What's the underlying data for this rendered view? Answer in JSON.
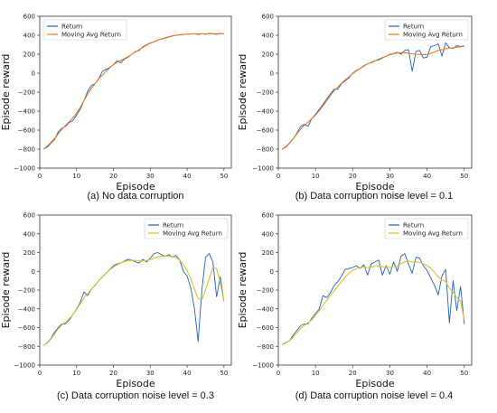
{
  "colors": {
    "return": "#1f5fbf",
    "avg_a": "#f07b1a",
    "avg_d": "#d9c02a"
  },
  "chart_data": [
    {
      "type": "line",
      "caption": "(a) No data corruption",
      "xlabel": "Episode",
      "ylabel": "Episode reward",
      "xlim": [
        0,
        52
      ],
      "ylim": [
        -1000,
        600
      ],
      "xticks": [
        "0",
        "10",
        "20",
        "30",
        "40",
        "50"
      ],
      "yticks": [
        "600",
        "400",
        "200",
        "0",
        "−200",
        "−400",
        "−600",
        "−800",
        "−1000"
      ],
      "legend": "top-left",
      "grid": false,
      "avg_color_key": "avg_a",
      "series": [
        {
          "name": "Return",
          "x": [
            1,
            2,
            3,
            4,
            5,
            6,
            7,
            8,
            9,
            10,
            11,
            12,
            13,
            14,
            15,
            16,
            17,
            18,
            19,
            20,
            21,
            22,
            23,
            24,
            25,
            26,
            27,
            28,
            29,
            30,
            31,
            32,
            33,
            34,
            35,
            36,
            37,
            38,
            39,
            40,
            41,
            42,
            43,
            44,
            45,
            46,
            47,
            48,
            49,
            50
          ],
          "values": [
            -800,
            -780,
            -740,
            -700,
            -620,
            -580,
            -560,
            -520,
            -500,
            -440,
            -380,
            -290,
            -190,
            -130,
            -110,
            -60,
            20,
            40,
            60,
            90,
            130,
            110,
            150,
            170,
            200,
            230,
            240,
            280,
            300,
            320,
            330,
            350,
            360,
            370,
            380,
            390,
            400,
            405,
            410,
            410,
            415,
            415,
            410,
            415,
            410,
            420,
            415,
            410,
            420,
            415
          ]
        },
        {
          "name": "Moving Avg Return",
          "x": [
            1,
            2,
            3,
            4,
            5,
            6,
            7,
            8,
            9,
            10,
            11,
            12,
            13,
            14,
            15,
            16,
            17,
            18,
            19,
            20,
            21,
            22,
            23,
            24,
            25,
            26,
            27,
            28,
            29,
            30,
            31,
            32,
            33,
            34,
            35,
            36,
            37,
            38,
            39,
            40,
            41,
            42,
            43,
            44,
            45,
            46,
            47,
            48,
            49,
            50
          ],
          "values": [
            -800,
            -770,
            -730,
            -690,
            -640,
            -590,
            -550,
            -510,
            -470,
            -420,
            -360,
            -290,
            -220,
            -160,
            -110,
            -60,
            -20,
            20,
            55,
            90,
            115,
            135,
            155,
            175,
            200,
            225,
            248,
            272,
            295,
            315,
            332,
            348,
            361,
            373,
            384,
            393,
            400,
            405,
            409,
            411,
            413,
            414,
            414,
            415,
            415,
            416,
            416,
            416,
            417,
            417
          ]
        }
      ]
    },
    {
      "type": "line",
      "caption": "(b) Data corruption noise level = 0.1",
      "xlabel": "Episode",
      "ylabel": "Episode reward",
      "xlim": [
        0,
        52
      ],
      "ylim": [
        -1000,
        600
      ],
      "xticks": [
        "0",
        "10",
        "20",
        "30",
        "40",
        "50"
      ],
      "yticks": [
        "600",
        "400",
        "200",
        "0",
        "−200",
        "−400",
        "−600",
        "−800",
        "−1000"
      ],
      "legend": "top-right",
      "grid": false,
      "avg_color_key": "avg_a",
      "series": [
        {
          "name": "Return",
          "x": [
            1,
            2,
            3,
            4,
            5,
            6,
            7,
            8,
            9,
            10,
            11,
            12,
            13,
            14,
            15,
            16,
            17,
            18,
            19,
            20,
            21,
            22,
            23,
            24,
            25,
            26,
            27,
            28,
            29,
            30,
            31,
            32,
            33,
            34,
            35,
            36,
            37,
            38,
            39,
            40,
            41,
            42,
            43,
            44,
            45,
            46,
            47,
            48,
            49,
            50
          ],
          "values": [
            -800,
            -780,
            -740,
            -690,
            -630,
            -560,
            -540,
            -560,
            -480,
            -430,
            -380,
            -330,
            -270,
            -220,
            -170,
            -170,
            -110,
            -80,
            -50,
            0,
            30,
            50,
            80,
            100,
            110,
            130,
            140,
            160,
            180,
            200,
            210,
            220,
            200,
            240,
            250,
            20,
            230,
            240,
            160,
            170,
            280,
            290,
            310,
            180,
            320,
            270,
            260,
            290,
            280,
            290
          ]
        },
        {
          "name": "Moving Avg Return",
          "x": [
            1,
            2,
            3,
            4,
            5,
            6,
            7,
            8,
            9,
            10,
            11,
            12,
            13,
            14,
            15,
            16,
            17,
            18,
            19,
            20,
            21,
            22,
            23,
            24,
            25,
            26,
            27,
            28,
            29,
            30,
            31,
            32,
            33,
            34,
            35,
            36,
            37,
            38,
            39,
            40,
            41,
            42,
            43,
            44,
            45,
            46,
            47,
            48,
            49,
            50
          ],
          "values": [
            -800,
            -775,
            -735,
            -690,
            -640,
            -590,
            -550,
            -515,
            -480,
            -440,
            -395,
            -345,
            -290,
            -235,
            -185,
            -145,
            -105,
            -70,
            -38,
            -5,
            25,
            50,
            75,
            97,
            115,
            132,
            148,
            164,
            180,
            194,
            206,
            213,
            215,
            215,
            213,
            205,
            200,
            198,
            196,
            198,
            210,
            225,
            240,
            248,
            258,
            264,
            268,
            274,
            278,
            284
          ]
        }
      ]
    },
    {
      "type": "line",
      "caption": "(c) Data corruption noise level = 0.3",
      "xlabel": "Episode",
      "ylabel": "Episode reward",
      "xlim": [
        0,
        52
      ],
      "ylim": [
        -1000,
        600
      ],
      "xticks": [
        "0",
        "10",
        "20",
        "30",
        "40",
        "50"
      ],
      "yticks": [
        "600",
        "400",
        "200",
        "0",
        "−200",
        "−400",
        "−600",
        "−800",
        "−1000"
      ],
      "legend": "top-right",
      "grid": false,
      "avg_color_key": "avg_d",
      "series": [
        {
          "name": "Return",
          "x": [
            1,
            2,
            3,
            4,
            5,
            6,
            7,
            8,
            9,
            10,
            11,
            12,
            13,
            14,
            15,
            16,
            17,
            18,
            19,
            20,
            21,
            22,
            23,
            24,
            25,
            26,
            27,
            28,
            29,
            30,
            31,
            32,
            33,
            34,
            35,
            36,
            37,
            38,
            39,
            40,
            41,
            42,
            43,
            44,
            45,
            46,
            47,
            48,
            49,
            50
          ],
          "values": [
            -790,
            -760,
            -720,
            -650,
            -600,
            -560,
            -560,
            -520,
            -460,
            -400,
            -330,
            -220,
            -260,
            -190,
            -150,
            -100,
            -60,
            -20,
            20,
            60,
            80,
            90,
            110,
            130,
            120,
            100,
            90,
            130,
            100,
            140,
            190,
            200,
            180,
            160,
            180,
            150,
            170,
            120,
            0,
            -50,
            -180,
            -400,
            -750,
            -200,
            150,
            190,
            100,
            -270,
            -60,
            -320
          ]
        },
        {
          "name": "Moving Avg Return",
          "x": [
            1,
            2,
            3,
            4,
            5,
            6,
            7,
            8,
            9,
            10,
            11,
            12,
            13,
            14,
            15,
            16,
            17,
            18,
            19,
            20,
            21,
            22,
            23,
            24,
            25,
            26,
            27,
            28,
            29,
            30,
            31,
            32,
            33,
            34,
            35,
            36,
            37,
            38,
            39,
            40,
            41,
            42,
            43,
            44,
            45,
            46,
            47,
            48,
            49,
            50
          ],
          "values": [
            -790,
            -765,
            -725,
            -670,
            -615,
            -570,
            -540,
            -505,
            -460,
            -405,
            -345,
            -285,
            -240,
            -190,
            -145,
            -100,
            -60,
            -20,
            15,
            45,
            70,
            90,
            105,
            115,
            118,
            115,
            112,
            112,
            115,
            125,
            140,
            155,
            160,
            162,
            160,
            155,
            145,
            120,
            70,
            10,
            -80,
            -190,
            -290,
            -300,
            -200,
            -80,
            40,
            30,
            -120,
            -320
          ]
        }
      ]
    },
    {
      "type": "line",
      "caption": "(d) Data corruption noise level = 0.4",
      "xlabel": "Episode",
      "ylabel": "Episode reward",
      "xlim": [
        0,
        52
      ],
      "ylim": [
        -1000,
        600
      ],
      "xticks": [
        "0",
        "10",
        "20",
        "30",
        "40",
        "50"
      ],
      "yticks": [
        "600",
        "400",
        "200",
        "0",
        "−200",
        "−400",
        "−600",
        "−800",
        "−1000"
      ],
      "legend": "top-right",
      "grid": false,
      "avg_color_key": "avg_d",
      "series": [
        {
          "name": "Return",
          "x": [
            1,
            2,
            3,
            4,
            5,
            6,
            7,
            8,
            9,
            10,
            11,
            12,
            13,
            14,
            15,
            16,
            17,
            18,
            19,
            20,
            21,
            22,
            23,
            24,
            25,
            26,
            27,
            28,
            29,
            30,
            31,
            32,
            33,
            34,
            35,
            36,
            37,
            38,
            39,
            40,
            41,
            42,
            43,
            44,
            45,
            46,
            47,
            48,
            49,
            50
          ],
          "values": [
            -780,
            -760,
            -740,
            -680,
            -630,
            -580,
            -560,
            -560,
            -500,
            -450,
            -400,
            -260,
            -280,
            -230,
            -150,
            -110,
            -50,
            20,
            30,
            40,
            60,
            30,
            70,
            -40,
            80,
            100,
            120,
            -40,
            60,
            -30,
            100,
            0,
            160,
            190,
            80,
            -20,
            150,
            140,
            60,
            10,
            -70,
            -150,
            -250,
            -50,
            20,
            -550,
            -100,
            -420,
            -160,
            -560
          ]
        },
        {
          "name": "Moving Avg Return",
          "x": [
            1,
            2,
            3,
            4,
            5,
            6,
            7,
            8,
            9,
            10,
            11,
            12,
            13,
            14,
            15,
            16,
            17,
            18,
            19,
            20,
            21,
            22,
            23,
            24,
            25,
            26,
            27,
            28,
            29,
            30,
            31,
            32,
            33,
            34,
            35,
            36,
            37,
            38,
            39,
            40,
            41,
            42,
            43,
            44,
            45,
            46,
            47,
            48,
            49,
            50
          ],
          "values": [
            -780,
            -765,
            -740,
            -700,
            -655,
            -610,
            -575,
            -550,
            -515,
            -470,
            -420,
            -360,
            -310,
            -260,
            -210,
            -160,
            -110,
            -60,
            -20,
            10,
            30,
            40,
            45,
            40,
            45,
            55,
            60,
            50,
            45,
            40,
            50,
            60,
            80,
            100,
            110,
            100,
            100,
            95,
            80,
            60,
            30,
            -10,
            -60,
            -90,
            -110,
            -180,
            -220,
            -280,
            -320,
            -520
          ]
        }
      ]
    }
  ]
}
